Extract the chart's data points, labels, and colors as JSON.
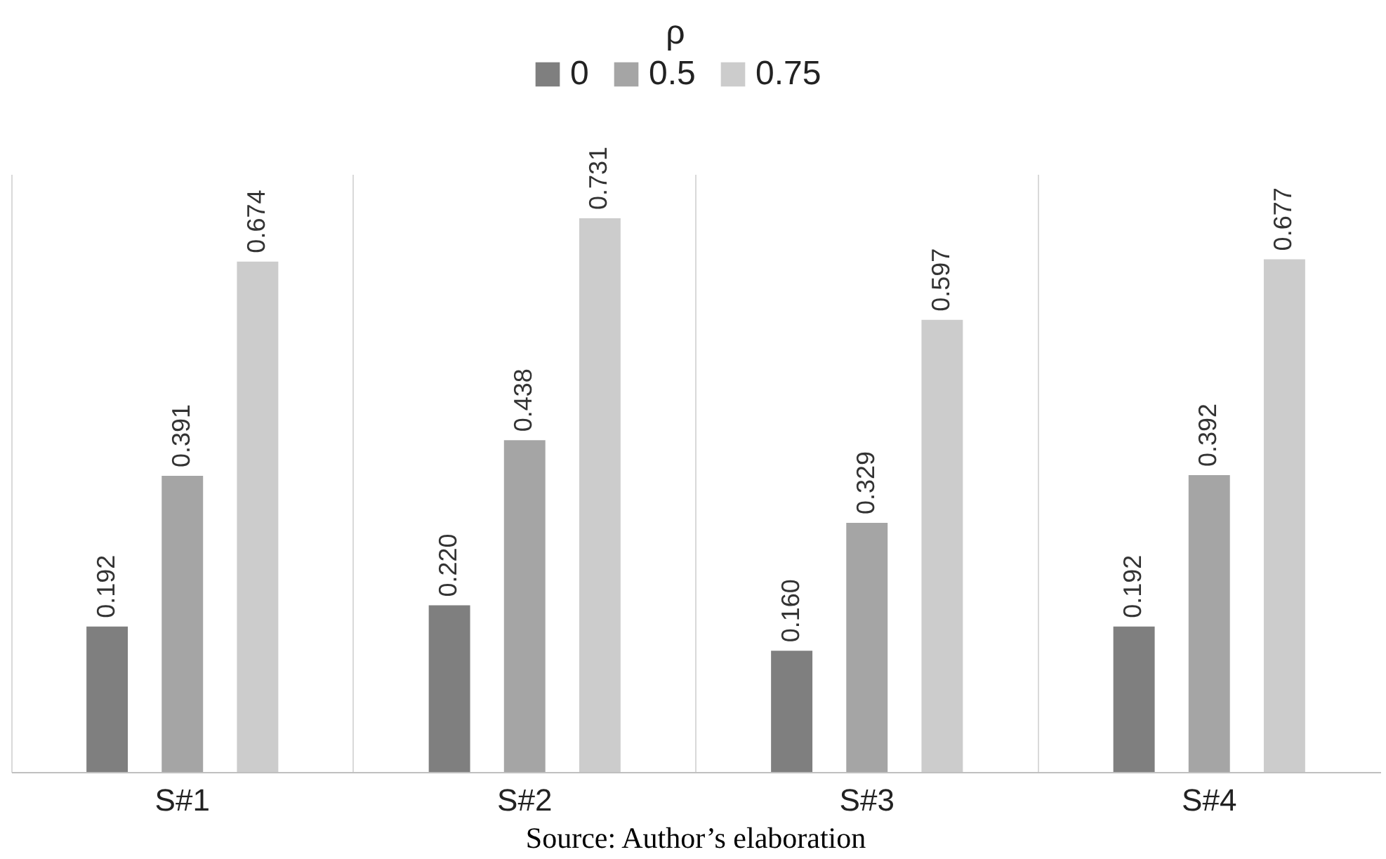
{
  "chart_data": {
    "type": "bar",
    "legend_title": "ρ",
    "categories": [
      "S#1",
      "S#2",
      "S#3",
      "S#4"
    ],
    "series": [
      {
        "name": "0",
        "color": "#7f7f7f",
        "values": [
          0.192,
          0.22,
          0.16,
          0.192
        ],
        "value_labels": [
          "0.192",
          "0.220",
          "0.160",
          "0.192"
        ]
      },
      {
        "name": "0.5",
        "color": "#a5a5a5",
        "values": [
          0.391,
          0.438,
          0.329,
          0.392
        ],
        "value_labels": [
          "0.391",
          "0.438",
          "0.329",
          "0.392"
        ]
      },
      {
        "name": "0.75",
        "color": "#cccccc",
        "values": [
          0.674,
          0.731,
          0.597,
          0.677
        ],
        "value_labels": [
          "0.674",
          "0.731",
          "0.597",
          "0.677"
        ]
      }
    ],
    "grid": "x",
    "legend": "top",
    "annotations": [
      "Source: Author’s elaboration"
    ]
  }
}
